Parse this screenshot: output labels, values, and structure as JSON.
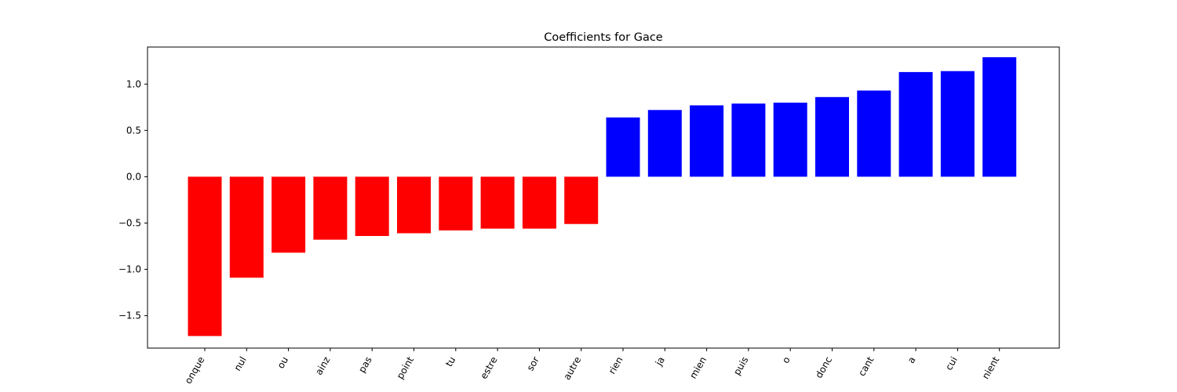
{
  "chart_data": {
    "type": "bar",
    "title": "Coefficients for Gace",
    "xlabel": "",
    "ylabel": "",
    "ylim": [
      -1.85,
      1.4
    ],
    "yticks": [
      -1.5,
      -1.0,
      -0.5,
      0.0,
      0.5,
      1.0
    ],
    "ytick_labels": [
      "−1.5",
      "−1.0",
      "−0.5",
      "0.0",
      "0.5",
      "1.0"
    ],
    "grid": false,
    "legend": "none",
    "negative_color": "#ff0000",
    "positive_color": "#0000ff",
    "categories": [
      "onque",
      "nul",
      "ou",
      "ainz",
      "pas",
      "point",
      "tu",
      "estre",
      "sor",
      "autre",
      "rien",
      "ja",
      "mien",
      "puis",
      "o",
      "donc",
      "cant",
      "a",
      "cui",
      "nient"
    ],
    "values": [
      -1.72,
      -1.09,
      -0.82,
      -0.68,
      -0.64,
      -0.61,
      -0.58,
      -0.56,
      -0.56,
      -0.51,
      0.64,
      0.72,
      0.77,
      0.79,
      0.8,
      0.86,
      0.93,
      1.13,
      1.14,
      1.29
    ]
  }
}
